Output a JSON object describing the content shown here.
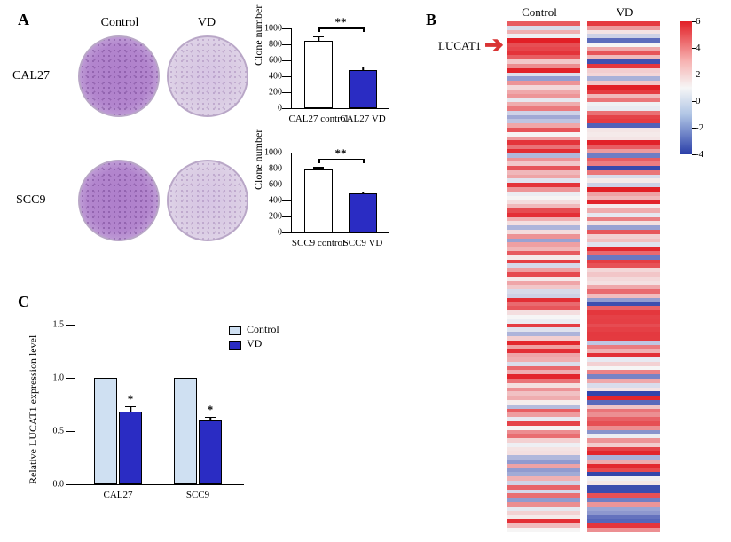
{
  "colors": {
    "white": "#ffffff",
    "blue": "#2a2cc3",
    "lightblue": "#cfe0f2",
    "black": "#000000",
    "arrow_red": "#d93434"
  },
  "panelA": {
    "label": "A",
    "col_labels": [
      "Control",
      "VD"
    ],
    "row_labels": [
      "CAL27",
      "SCC9"
    ],
    "charts": [
      {
        "ylabel": "Clone number",
        "ymax": 1000,
        "ytick_step": 200,
        "bars": [
          {
            "xlabel": "CAL27 control",
            "value": 850,
            "err": 50,
            "fill": "#ffffff"
          },
          {
            "xlabel": "CAL27 VD",
            "value": 480,
            "err": 40,
            "fill": "#2a2cc3"
          }
        ],
        "sig": "**"
      },
      {
        "ylabel": "Clone number",
        "ymax": 1000,
        "ytick_step": 200,
        "bars": [
          {
            "xlabel": "SCC9 control",
            "value": 790,
            "err": 25,
            "fill": "#ffffff"
          },
          {
            "xlabel": "SCC9 VD",
            "value": 490,
            "err": 20,
            "fill": "#2a2cc3"
          }
        ],
        "sig": "**"
      }
    ]
  },
  "panelB": {
    "label": "B",
    "headers": [
      "Control",
      "VD"
    ],
    "pointer_label": "LUCAT1",
    "heatmap_rows": 120,
    "colorbar": {
      "min": -4,
      "max": 6,
      "step": 2
    },
    "col_seeds": [
      123,
      456
    ]
  },
  "panelC": {
    "label": "C",
    "ylabel": "Relative LUCAT1 expression level",
    "ymax": 1.5,
    "ytick_step": 0.5,
    "groups": [
      "CAL27",
      "SCC9"
    ],
    "legend": [
      {
        "label": "Control",
        "fill": "#cfe0f2"
      },
      {
        "label": "VD",
        "fill": "#2a2cc3"
      }
    ],
    "bars": [
      {
        "group": "CAL27",
        "series": "Control",
        "value": 1.0,
        "err": 0.0,
        "fill": "#cfe0f2",
        "sig": ""
      },
      {
        "group": "CAL27",
        "series": "VD",
        "value": 0.68,
        "err": 0.05,
        "fill": "#2a2cc3",
        "sig": "*"
      },
      {
        "group": "SCC9",
        "series": "Control",
        "value": 1.0,
        "err": 0.0,
        "fill": "#cfe0f2",
        "sig": ""
      },
      {
        "group": "SCC9",
        "series": "VD",
        "value": 0.6,
        "err": 0.03,
        "fill": "#2a2cc3",
        "sig": "*"
      }
    ]
  }
}
